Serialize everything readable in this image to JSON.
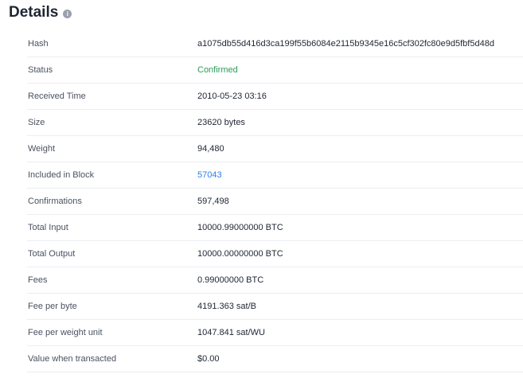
{
  "title": "Details",
  "rows": [
    {
      "label": "Hash",
      "value": "a1075db55d416d3ca199f55b6084e2115b9345e16c5cf302fc80e9d5fbf5d48d",
      "type": "text"
    },
    {
      "label": "Status",
      "value": "Confirmed",
      "type": "status",
      "color": "#2e9a5a"
    },
    {
      "label": "Received Time",
      "value": "2010-05-23 03:16",
      "type": "text"
    },
    {
      "label": "Size",
      "value": "23620 bytes",
      "type": "text"
    },
    {
      "label": "Weight",
      "value": "94,480",
      "type": "text"
    },
    {
      "label": "Included in Block",
      "value": "57043",
      "type": "link",
      "color": "#2f7de1"
    },
    {
      "label": "Confirmations",
      "value": "597,498",
      "type": "text"
    },
    {
      "label": "Total Input",
      "value": "10000.99000000 BTC",
      "type": "text"
    },
    {
      "label": "Total Output",
      "value": "10000.00000000 BTC",
      "type": "text"
    },
    {
      "label": "Fees",
      "value": "0.99000000 BTC",
      "type": "text"
    },
    {
      "label": "Fee per byte",
      "value": "4191.363 sat/B",
      "type": "text"
    },
    {
      "label": "Fee per weight unit",
      "value": "1047.841 sat/WU",
      "type": "text"
    },
    {
      "label": "Value when transacted",
      "value": "$0.00",
      "type": "text"
    }
  ]
}
